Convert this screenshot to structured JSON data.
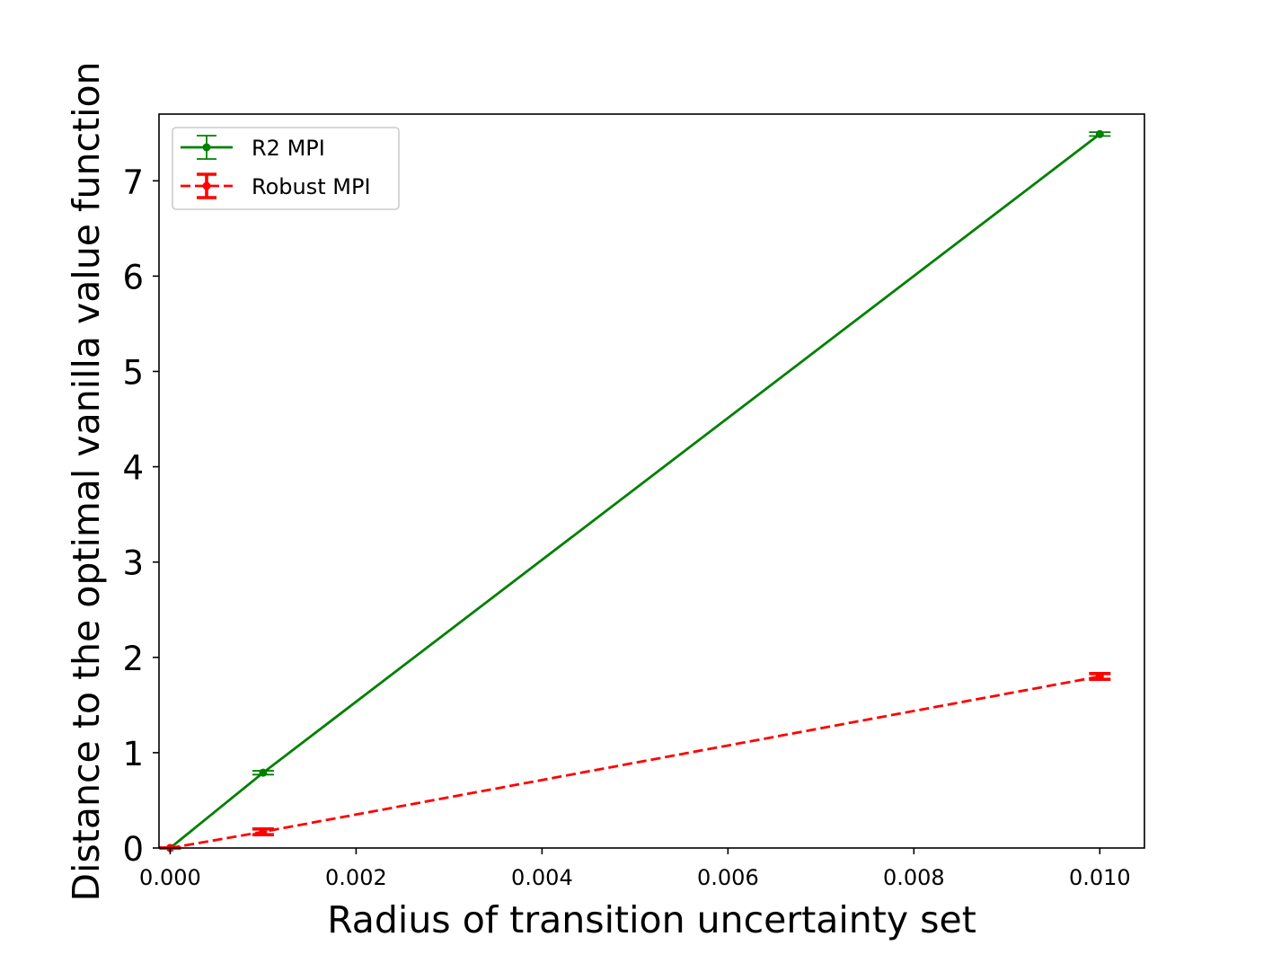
{
  "chart_data": {
    "type": "line",
    "title": "",
    "xlabel": "Radius of transition uncertainty set",
    "ylabel": "Distance to the optimal vanilla value function",
    "xlim": [
      -0.00012,
      0.01048
    ],
    "ylim": [
      0,
      7.7
    ],
    "x_ticks": [
      0.0,
      0.002,
      0.004,
      0.006,
      0.008,
      0.01
    ],
    "x_tick_labels": [
      "0.000",
      "0.002",
      "0.004",
      "0.006",
      "0.008",
      "0.010"
    ],
    "y_ticks": [
      0,
      1,
      2,
      3,
      4,
      5,
      6,
      7
    ],
    "y_tick_labels": [
      "0",
      "1",
      "2",
      "3",
      "4",
      "5",
      "6",
      "7"
    ],
    "grid": false,
    "legend_position": "top-left",
    "series": [
      {
        "name": "R2 MPI",
        "color": "#008000",
        "dash": "solid",
        "x": [
          0.0,
          0.001,
          0.01
        ],
        "y": [
          0.0,
          0.79,
          7.49
        ],
        "err": [
          0.0,
          0.02,
          0.02
        ]
      },
      {
        "name": "Robust MPI",
        "color": "#ff0000",
        "dash": "dashed",
        "x": [
          0.0,
          0.001,
          0.01
        ],
        "y": [
          0.0,
          0.17,
          1.8
        ],
        "err": [
          0.0,
          0.03,
          0.03
        ]
      }
    ]
  }
}
